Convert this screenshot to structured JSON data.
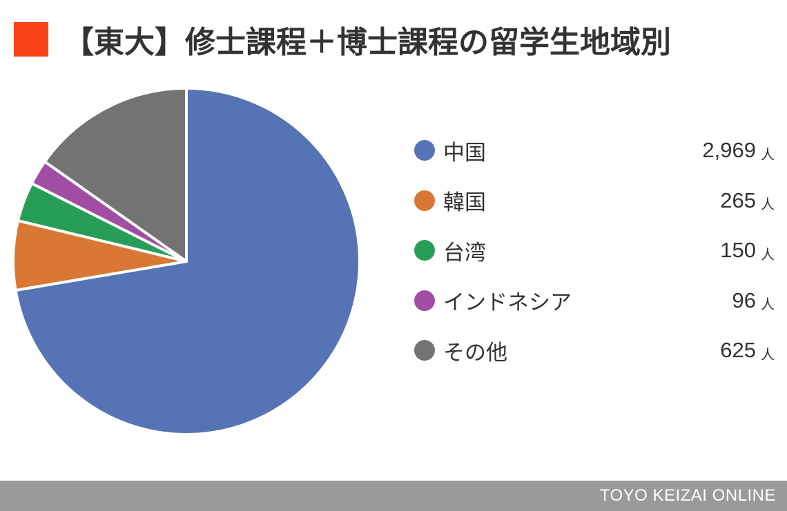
{
  "title": "【東大】修士課程＋博士課程の留学生地域別",
  "accent_color": "#fb4319",
  "footer": {
    "brand": "TOYO KEIZAI ONLINE"
  },
  "chart_data": {
    "type": "pie",
    "title": "【東大】修士課程＋博士課程の留学生地域別",
    "unit": "人",
    "slices": [
      {
        "label": "中国",
        "value": 2969,
        "display": "2,969",
        "color": "#5673b5"
      },
      {
        "label": "韓国",
        "value": 265,
        "display": "265",
        "color": "#d97835"
      },
      {
        "label": "台湾",
        "value": 150,
        "display": "150",
        "color": "#279e57"
      },
      {
        "label": "インドネシア",
        "value": 96,
        "display": "96",
        "color": "#a04ea3"
      },
      {
        "label": "その他",
        "value": 625,
        "display": "625",
        "color": "#737373"
      }
    ],
    "start_angle": "12 o'clock",
    "direction": "clockwise",
    "legend_position": "right"
  }
}
